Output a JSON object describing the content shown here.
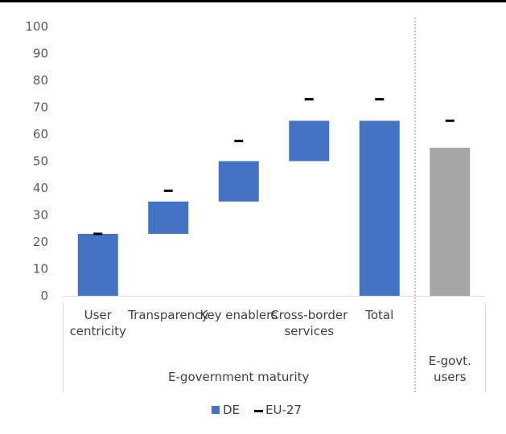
{
  "chart_data": {
    "type": "bar",
    "subtype": "waterfall-with-markers",
    "ylim": [
      0,
      100
    ],
    "yticks": [
      "0",
      "10",
      "20",
      "30",
      "40",
      "50",
      "60",
      "70",
      "80",
      "90",
      "100"
    ],
    "grid": false,
    "legend_position": "bottom",
    "colors": {
      "de": "#4472C4",
      "users": "#A5A5A5",
      "marker": "#000000"
    },
    "groups": [
      {
        "label": "E-government maturity",
        "categories": [
          "User centricity",
          "Transparency",
          "Key enablers",
          "Cross-border services",
          "Total"
        ]
      },
      {
        "label": "E-govt. users",
        "categories": [
          ""
        ]
      }
    ],
    "category_lines": [
      [
        "User",
        "centricity"
      ],
      [
        "Transparency"
      ],
      [
        "Key enablers"
      ],
      [
        "Cross-border",
        "services"
      ],
      [
        "Total"
      ],
      [
        ""
      ]
    ],
    "series": [
      {
        "name": "DE",
        "bars": [
          {
            "start": 0,
            "end": 23
          },
          {
            "start": 23,
            "end": 35
          },
          {
            "start": 35,
            "end": 50
          },
          {
            "start": 50,
            "end": 65
          },
          {
            "start": 0,
            "end": 65
          },
          {
            "start": 0,
            "end": 55
          }
        ]
      },
      {
        "name": "EU-27",
        "values": [
          23,
          39,
          57.5,
          73,
          73,
          65
        ]
      }
    ]
  }
}
